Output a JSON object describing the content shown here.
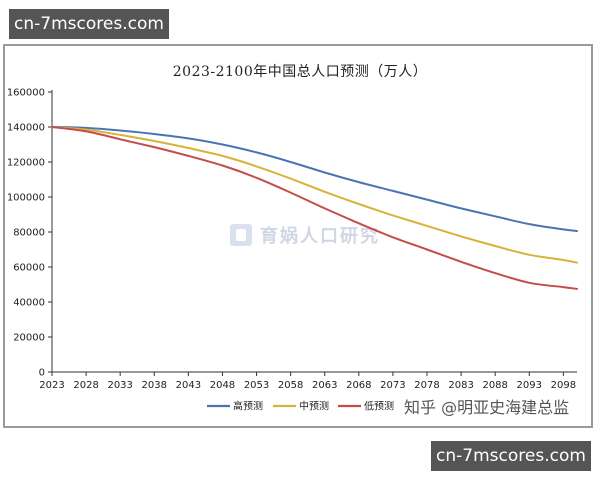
{
  "overlay": {
    "site_label": "cn-7mscores.com",
    "site_label_bottom": "cn-7mscores.com",
    "watermark_text": "育娲人口研究",
    "credit_text": "知乎 @明亚史海建总监"
  },
  "colors": {
    "high": "#4a74b3",
    "mid": "#d9b23a",
    "low": "#c44d4a",
    "axis": "#333333"
  },
  "chart_data": {
    "type": "line",
    "title": "2023-2100年中国总人口预测（万人）",
    "xlabel": "",
    "ylabel": "",
    "xlim": [
      2023,
      2100
    ],
    "ylim": [
      0,
      160000
    ],
    "x_ticks": [
      "2023",
      "2028",
      "2033",
      "2038",
      "2043",
      "2048",
      "2053",
      "2058",
      "2063",
      "2068",
      "2073",
      "2078",
      "2083",
      "2088",
      "2093",
      "2098"
    ],
    "y_ticks": [
      "0",
      "20000",
      "40000",
      "60000",
      "80000",
      "100000",
      "120000",
      "140000",
      "160000"
    ],
    "grid": false,
    "legend_position": "bottom",
    "x": [
      2023,
      2028,
      2033,
      2038,
      2043,
      2048,
      2053,
      2058,
      2063,
      2068,
      2073,
      2078,
      2083,
      2088,
      2093,
      2098,
      2100
    ],
    "series": [
      {
        "name": "高预测",
        "color_key": "high",
        "values": [
          140000,
          139500,
          138000,
          136000,
          133500,
          130000,
          125500,
          120000,
          114000,
          108500,
          103500,
          98500,
          93500,
          89000,
          84500,
          81500,
          80500
        ]
      },
      {
        "name": "中预测",
        "color_key": "mid",
        "values": [
          140000,
          138500,
          135500,
          132000,
          128000,
          123500,
          117500,
          110500,
          103000,
          96000,
          89500,
          83500,
          77500,
          72000,
          67000,
          64000,
          62500
        ]
      },
      {
        "name": "低预测",
        "color_key": "low",
        "values": [
          140000,
          137500,
          133000,
          128500,
          123500,
          118000,
          111000,
          102500,
          93500,
          85000,
          77000,
          70000,
          63000,
          56500,
          51000,
          48500,
          47500
        ]
      }
    ]
  }
}
